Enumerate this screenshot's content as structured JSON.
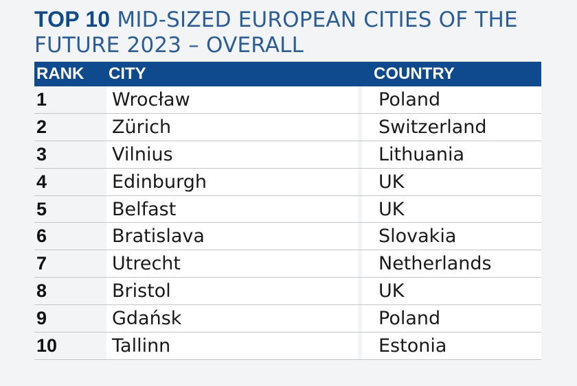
{
  "title": {
    "bold_part": "TOP 10",
    "rest": "MID-SIZED EUROPEAN CITIES OF THE FUTURE 2023 – OVERALL"
  },
  "table": {
    "headers": [
      "RANK",
      "CITY",
      "COUNTRY"
    ],
    "rows": [
      {
        "rank": "1",
        "city": "Wrocław",
        "country": "Poland"
      },
      {
        "rank": "2",
        "city": "Zürich",
        "country": "Switzerland"
      },
      {
        "rank": "3",
        "city": "Vilnius",
        "country": "Lithuania"
      },
      {
        "rank": "4",
        "city": "Edinburgh",
        "country": "UK"
      },
      {
        "rank": "5",
        "city": "Belfast",
        "country": "UK"
      },
      {
        "rank": "6",
        "city": "Bratislava",
        "country": "Slovakia"
      },
      {
        "rank": "7",
        "city": "Utrecht",
        "country": "Netherlands"
      },
      {
        "rank": "8",
        "city": "Bristol",
        "country": "UK"
      },
      {
        "rank": "9",
        "city": "Gdańsk",
        "country": "Poland"
      },
      {
        "rank": "10",
        "city": "Tallinn",
        "country": "Estonia"
      }
    ]
  },
  "colors": {
    "header_bg": "#0e4a8d",
    "title_color": "#1a4f8b"
  }
}
